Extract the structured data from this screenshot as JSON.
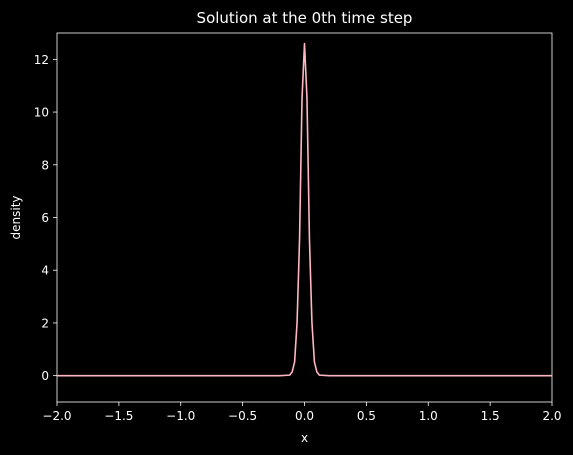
{
  "chart_data": {
    "type": "line",
    "title": "Solution at the 0th time step",
    "xlabel": "x",
    "ylabel": "density",
    "xlim": [
      -2.0,
      2.0
    ],
    "ylim": [
      -1.0,
      13.0
    ],
    "xticks": [
      -2.0,
      -1.5,
      -1.0,
      -0.5,
      0.0,
      0.5,
      1.0,
      1.5,
      2.0
    ],
    "xtick_labels": [
      "−2.0",
      "−1.5",
      "−1.0",
      "−0.5",
      "0.0",
      "0.5",
      "1.0",
      "1.5",
      "2.0"
    ],
    "yticks": [
      0,
      2,
      4,
      6,
      8,
      10,
      12
    ],
    "ytick_labels": [
      "0",
      "2",
      "4",
      "6",
      "8",
      "10",
      "12"
    ],
    "grid": false,
    "legend": "none",
    "background_color": "#000000",
    "line_color": "#ffb6c1",
    "series": [
      {
        "x": [
          -2.0,
          -1.0,
          -0.2,
          -0.12,
          -0.1,
          -0.08,
          -0.06,
          -0.04,
          -0.02,
          0.0,
          0.02,
          0.04,
          0.06,
          0.08,
          0.1,
          0.12,
          0.2,
          1.0,
          2.0
        ],
        "values": [
          0.0,
          0.0,
          0.0,
          0.02,
          0.14,
          0.52,
          2.02,
          5.17,
          10.52,
          12.6,
          10.52,
          5.17,
          2.02,
          0.52,
          0.14,
          0.02,
          0.0,
          0.0,
          0.0
        ]
      }
    ]
  }
}
